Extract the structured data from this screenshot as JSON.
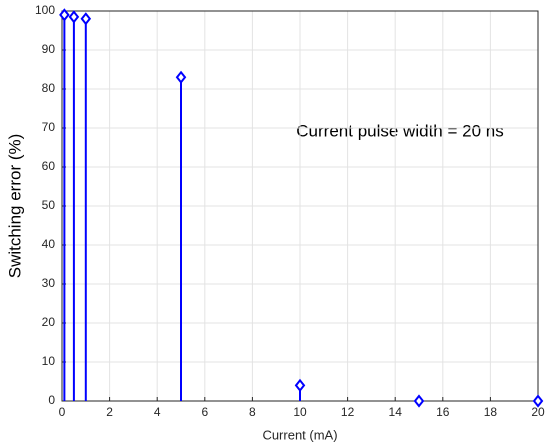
{
  "chart_data": {
    "type": "stem",
    "annotation": "Current pulse width = 20 ns",
    "x_label": "Current (mA)",
    "y_label": "Switching error (%)",
    "x": [
      0.1,
      0.5,
      1,
      5,
      10,
      15,
      20
    ],
    "values": [
      99,
      98.5,
      98,
      83,
      4,
      0,
      0
    ],
    "color": "#0000ff",
    "xlim": [
      0,
      20
    ],
    "xticks": [
      0,
      2,
      4,
      6,
      8,
      10,
      12,
      14,
      16,
      18,
      20
    ],
    "ylim": [
      0,
      100
    ],
    "yticks": [
      0,
      10,
      20,
      30,
      40,
      50,
      60,
      70,
      80,
      90,
      100
    ],
    "grid": true
  }
}
